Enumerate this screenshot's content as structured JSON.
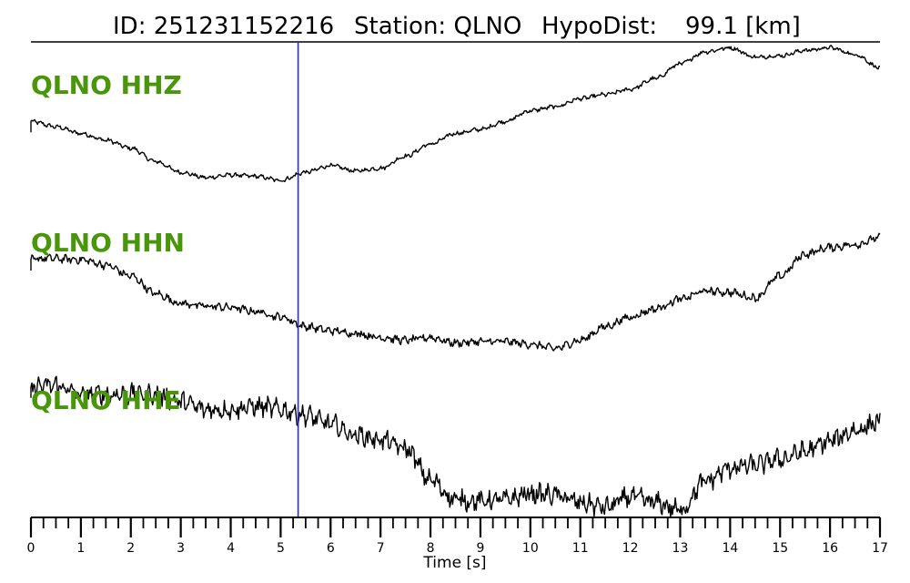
{
  "header": {
    "id_text": "ID: 251231152216",
    "station_text": "Station: QLNO",
    "hypodist_label": "HypoDist:",
    "hypodist_value": "99.1 [km]"
  },
  "colors": {
    "label": "#4a960a",
    "pick_line": "#1f2fd0",
    "trace": "#000000"
  },
  "chart_data": {
    "type": "line",
    "title": "ID: 251231152216   Station: QLNO   HypoDist:    99.1 [km]",
    "xlabel": "Time [s]",
    "ylabel": "",
    "xlim": [
      0,
      17
    ],
    "x_ticks": [
      "0",
      "1",
      "2",
      "3",
      "4",
      "5",
      "6",
      "7",
      "8",
      "9",
      "10",
      "11",
      "12",
      "13",
      "14",
      "15",
      "16",
      "17"
    ],
    "minor_tick_step": 0.25,
    "pick_time": 5.35,
    "grid": false,
    "series": [
      {
        "name": "QLNO HHZ",
        "noise": 0.012,
        "points": [
          [
            0,
            0.42
          ],
          [
            0.5,
            0.38
          ],
          [
            1,
            0.33
          ],
          [
            1.5,
            0.28
          ],
          [
            2,
            0.22
          ],
          [
            2.5,
            0.12
          ],
          [
            3,
            0.04
          ],
          [
            3.5,
            0.0
          ],
          [
            4,
            0.02
          ],
          [
            4.5,
            0.01
          ],
          [
            5,
            -0.02
          ],
          [
            5.5,
            0.04
          ],
          [
            6,
            0.09
          ],
          [
            6.5,
            0.05
          ],
          [
            7,
            0.07
          ],
          [
            7.5,
            0.16
          ],
          [
            8,
            0.25
          ],
          [
            8.5,
            0.33
          ],
          [
            9,
            0.36
          ],
          [
            9.5,
            0.42
          ],
          [
            10,
            0.5
          ],
          [
            10.5,
            0.53
          ],
          [
            11,
            0.59
          ],
          [
            11.5,
            0.62
          ],
          [
            12,
            0.66
          ],
          [
            12.5,
            0.74
          ],
          [
            13,
            0.85
          ],
          [
            13.5,
            0.94
          ],
          [
            14,
            0.97
          ],
          [
            14.5,
            0.9
          ],
          [
            15,
            0.91
          ],
          [
            15.5,
            0.95
          ],
          [
            16,
            0.97
          ],
          [
            16.5,
            0.92
          ],
          [
            17,
            0.82
          ]
        ]
      },
      {
        "name": "QLNO HHN",
        "noise": 0.022,
        "points": [
          [
            0,
            0.62
          ],
          [
            0.3,
            0.63
          ],
          [
            1,
            0.62
          ],
          [
            1.5,
            0.58
          ],
          [
            2,
            0.5
          ],
          [
            2.5,
            0.37
          ],
          [
            3,
            0.3
          ],
          [
            3.5,
            0.28
          ],
          [
            4,
            0.27
          ],
          [
            4.5,
            0.24
          ],
          [
            5,
            0.2
          ],
          [
            5.5,
            0.13
          ],
          [
            6,
            0.1
          ],
          [
            6.5,
            0.08
          ],
          [
            7,
            0.05
          ],
          [
            7.5,
            0.03
          ],
          [
            8,
            0.05
          ],
          [
            8.5,
            0.01
          ],
          [
            9,
            0.02
          ],
          [
            9.5,
            0.02
          ],
          [
            10,
            0.0
          ],
          [
            10.5,
            -0.03
          ],
          [
            11,
            0.03
          ],
          [
            11.5,
            0.13
          ],
          [
            12,
            0.2
          ],
          [
            12.5,
            0.26
          ],
          [
            13,
            0.33
          ],
          [
            13.5,
            0.39
          ],
          [
            14,
            0.38
          ],
          [
            14.5,
            0.34
          ],
          [
            15,
            0.5
          ],
          [
            15.5,
            0.66
          ],
          [
            16,
            0.71
          ],
          [
            16.5,
            0.73
          ],
          [
            17,
            0.78
          ]
        ]
      },
      {
        "name": "QLNO HHE",
        "noise": 0.05,
        "points": [
          [
            0,
            0.85
          ],
          [
            0.5,
            0.86
          ],
          [
            1,
            0.8
          ],
          [
            1.5,
            0.8
          ],
          [
            2,
            0.8
          ],
          [
            2.5,
            0.8
          ],
          [
            3,
            0.75
          ],
          [
            3.5,
            0.7
          ],
          [
            4,
            0.7
          ],
          [
            4.5,
            0.72
          ],
          [
            5,
            0.7
          ],
          [
            5.5,
            0.66
          ],
          [
            6,
            0.6
          ],
          [
            6.5,
            0.53
          ],
          [
            7,
            0.5
          ],
          [
            7.5,
            0.44
          ],
          [
            8,
            0.23
          ],
          [
            8.5,
            0.1
          ],
          [
            9,
            0.09
          ],
          [
            9.5,
            0.1
          ],
          [
            10,
            0.14
          ],
          [
            10.5,
            0.13
          ],
          [
            11,
            0.08
          ],
          [
            11.5,
            0.05
          ],
          [
            12,
            0.12
          ],
          [
            12.5,
            0.08
          ],
          [
            13,
            0.03
          ],
          [
            13.5,
            0.22
          ],
          [
            14,
            0.31
          ],
          [
            14.5,
            0.33
          ],
          [
            15,
            0.37
          ],
          [
            15.5,
            0.42
          ],
          [
            16,
            0.49
          ],
          [
            16.5,
            0.56
          ],
          [
            17,
            0.62
          ]
        ]
      }
    ]
  }
}
